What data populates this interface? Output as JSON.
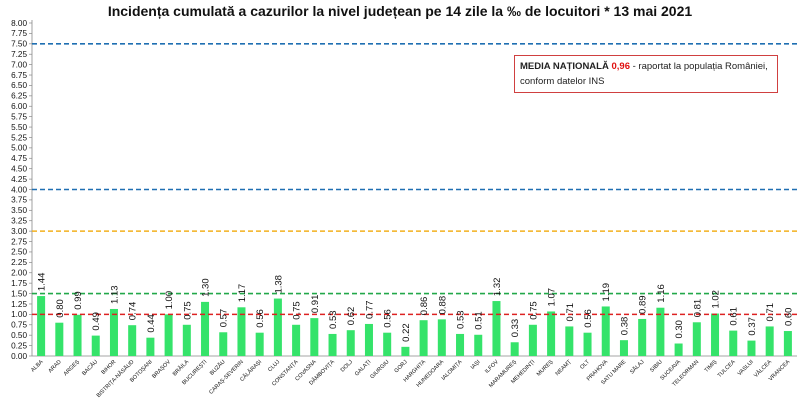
{
  "chart_data": {
    "type": "bar",
    "title": "Incidența cumulată a cazurilor la nivel județean pe 14 zile la ‰ de locuitori *  13 mai 2021",
    "xlabel": "",
    "ylabel": "",
    "ylim": [
      0,
      8.0
    ],
    "ytick_step": 0.25,
    "grid": false,
    "categories": [
      "ALBA",
      "ARAD",
      "ARGEȘ",
      "BACĂU",
      "BIHOR",
      "BISTRIȚA-NĂSĂUD",
      "BOTOȘANI",
      "BRAȘOV",
      "BRĂILA",
      "BUCUREȘTI",
      "BUZĂU",
      "CARAȘ-SEVERIN",
      "CĂLĂRAȘI",
      "CLUJ",
      "CONSTANȚA",
      "COVASNA",
      "DÂMBOVIȚA",
      "DOLJ",
      "GALAȚI",
      "GIURGIU",
      "GORJ",
      "HARGHITA",
      "HUNEDOARA",
      "IALOMIȚA",
      "IAȘI",
      "ILFOV",
      "MARAMUREȘ",
      "MEHEDINȚI",
      "MUREȘ",
      "NEAMȚ",
      "OLT",
      "PRAHOVA",
      "SATU MARE",
      "SĂLAJ",
      "SIBIU",
      "SUCEAVA",
      "TELEORMAN",
      "TIMIȘ",
      "TULCEA",
      "VASLUI",
      "VÂLCEA",
      "VRANCEA"
    ],
    "values": [
      1.44,
      0.8,
      0.99,
      0.49,
      1.13,
      0.74,
      0.44,
      1.0,
      0.75,
      1.3,
      0.57,
      1.17,
      0.56,
      1.38,
      0.75,
      0.91,
      0.53,
      0.62,
      0.77,
      0.56,
      0.22,
      0.86,
      0.88,
      0.53,
      0.51,
      1.32,
      0.33,
      0.75,
      1.07,
      0.71,
      0.56,
      1.19,
      0.38,
      0.89,
      1.16,
      0.3,
      0.81,
      1.02,
      0.61,
      0.37,
      0.71,
      0.6
    ],
    "value_labels": [
      "1.44",
      "0.80",
      "0.99",
      "0.49",
      "1.13",
      "0.74",
      "0.44",
      "1.00",
      "0.75",
      "1.30",
      "0.57",
      "1.17",
      "0.56",
      "1.38",
      "0.75",
      "0.91",
      "0.53",
      "0.62",
      "0.77",
      "0.56",
      "0.22",
      "0.86",
      "0.88",
      "0.53",
      "0.51",
      "1.32",
      "0.33",
      "0.75",
      "1.07",
      "0.71",
      "0.56",
      "1.19",
      "0.38",
      "0.89",
      "1.16",
      "0.30",
      "0.81",
      "1.02",
      "0.61",
      "0.37",
      "0.71",
      "0.60"
    ],
    "reference_lines": [
      {
        "value": 7.5,
        "color": "#1f6fb2"
      },
      {
        "value": 4.0,
        "color": "#1f6fb2"
      },
      {
        "value": 3.0,
        "color": "#f2b01e"
      },
      {
        "value": 1.5,
        "color": "#22a84a"
      },
      {
        "value": 1.0,
        "color": "#dd2222"
      }
    ],
    "annotation": {
      "label": "MEDIA NAȚIONALĂ",
      "value": "0,96",
      "text_line1": " - raportat la populația României,",
      "text_line2": "conform datelor INS"
    }
  },
  "colors": {
    "bar": "#35e36a",
    "axis": "#888888",
    "text": "#111111"
  }
}
